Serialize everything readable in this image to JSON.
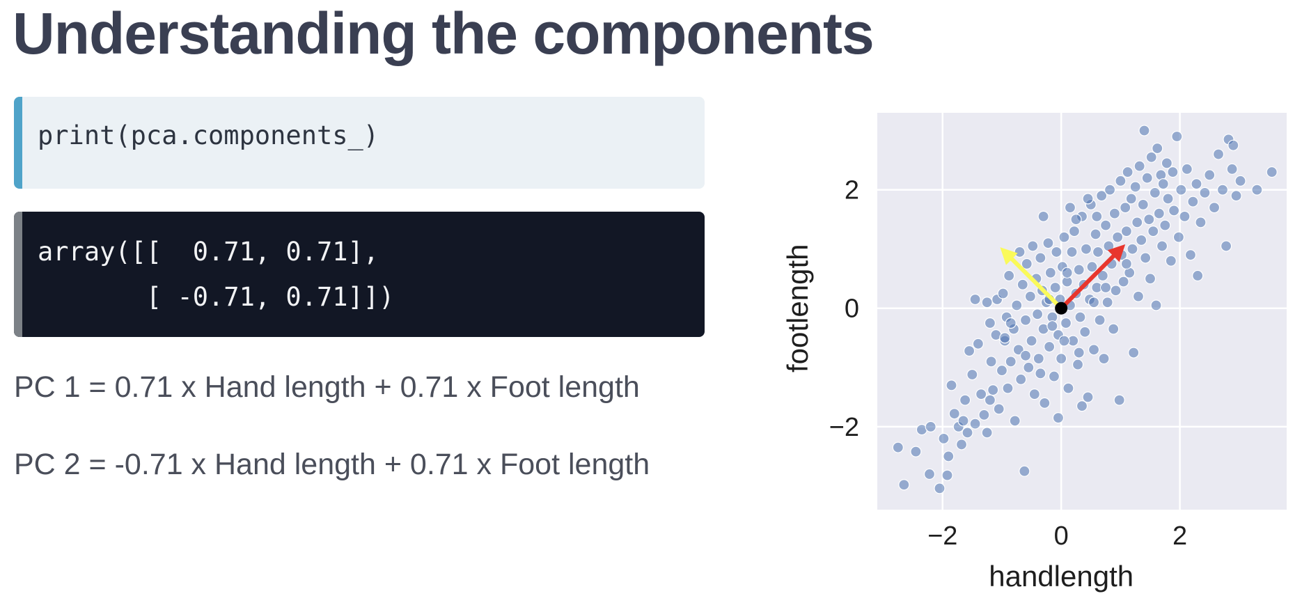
{
  "slide": {
    "title": "Understanding the components"
  },
  "code_input": {
    "text": "print(pca.components_)"
  },
  "code_output": {
    "lines": [
      "array([[  0.71, 0.71],",
      "       [ -0.71, 0.71]])"
    ]
  },
  "equations": [
    "PC 1 = 0.71 x Hand length + 0.71 x Foot length",
    "PC 2 = -0.71 x Hand length + 0.71 x Foot length"
  ],
  "colors": {
    "title": "#3a3f52",
    "code_input_bg": "#ebf1f5",
    "code_input_accent": "#4fa3c9",
    "code_output_bg": "#121725",
    "code_output_accent": "#7c8187",
    "plot_bg": "#eaeaf2",
    "point": "#4c72b0",
    "pc1_arrow": "#e8362d",
    "pc2_arrow": "#fafa5a"
  },
  "chart_data": {
    "type": "scatter",
    "title": "",
    "xlabel": "handlength",
    "ylabel": "footlength",
    "xlim": [
      -3.1,
      3.8
    ],
    "ylim": [
      -3.4,
      3.3
    ],
    "xticks": [
      -2,
      0,
      2
    ],
    "yticks": [
      -2,
      0,
      2
    ],
    "xtick_labels": [
      "−2",
      "0",
      "2"
    ],
    "ytick_labels": [
      "−2",
      "0",
      "2"
    ],
    "grid": true,
    "points": [
      [
        -2.75,
        -2.35
      ],
      [
        -2.65,
        -2.98
      ],
      [
        -2.45,
        -2.42
      ],
      [
        -2.35,
        -2.05
      ],
      [
        -2.22,
        -2.8
      ],
      [
        -2.05,
        -3.04
      ],
      [
        -1.98,
        -2.2
      ],
      [
        -1.92,
        -2.82
      ],
      [
        -1.85,
        -1.3
      ],
      [
        -1.8,
        -1.78
      ],
      [
        -1.73,
        -2.0
      ],
      [
        -1.68,
        -2.3
      ],
      [
        -1.62,
        -1.55
      ],
      [
        -1.58,
        -2.1
      ],
      [
        -1.55,
        -0.72
      ],
      [
        -1.5,
        -1.12
      ],
      [
        -1.45,
        -1.95
      ],
      [
        -1.4,
        -0.6
      ],
      [
        -1.35,
        -1.45
      ],
      [
        -1.3,
        -1.8
      ],
      [
        -1.25,
        -2.1
      ],
      [
        -1.2,
        -0.25
      ],
      [
        -1.18,
        -0.9
      ],
      [
        -1.15,
        -1.38
      ],
      [
        -1.1,
        -0.45
      ],
      [
        -1.08,
        0.15
      ],
      [
        -1.05,
        -1.7
      ],
      [
        -1.0,
        -1.05
      ],
      [
        -0.98,
        0.25
      ],
      [
        -0.95,
        -0.55
      ],
      [
        -0.92,
        -0.15
      ],
      [
        -0.9,
        -1.35
      ],
      [
        -0.88,
        0.55
      ],
      [
        -0.85,
        -0.9
      ],
      [
        -0.8,
        -0.35
      ],
      [
        -0.78,
        -1.9
      ],
      [
        -0.75,
        0.05
      ],
      [
        -0.72,
        -0.7
      ],
      [
        -0.7,
        0.95
      ],
      [
        -0.68,
        -1.2
      ],
      [
        -0.65,
        0.4
      ],
      [
        -0.62,
        -2.75
      ],
      [
        -0.6,
        -0.2
      ],
      [
        -0.58,
        0.75
      ],
      [
        -0.55,
        -1.0
      ],
      [
        -0.52,
        0.2
      ],
      [
        -0.5,
        -0.55
      ],
      [
        -0.48,
        1.05
      ],
      [
        -0.45,
        -1.45
      ],
      [
        -0.42,
        0.5
      ],
      [
        -0.4,
        -0.1
      ],
      [
        -0.38,
        -0.85
      ],
      [
        -0.35,
        0.85
      ],
      [
        -0.32,
        0.3
      ],
      [
        -0.3,
        -0.35
      ],
      [
        -0.28,
        -1.6
      ],
      [
        -0.25,
        0.1
      ],
      [
        -0.22,
        1.1
      ],
      [
        -0.2,
        -0.65
      ],
      [
        -0.18,
        0.6
      ],
      [
        -0.15,
        -0.15
      ],
      [
        -0.12,
        -1.15
      ],
      [
        -0.1,
        0.35
      ],
      [
        -0.08,
        0.95
      ],
      [
        -0.05,
        -0.45
      ],
      [
        -0.02,
        0.15
      ],
      [
        0.0,
        -0.85
      ],
      [
        0.02,
        0.7
      ],
      [
        0.05,
        1.2
      ],
      [
        0.08,
        -0.25
      ],
      [
        0.1,
        0.45
      ],
      [
        0.12,
        -1.35
      ],
      [
        0.15,
        0.05
      ],
      [
        0.18,
        0.95
      ],
      [
        0.2,
        -0.55
      ],
      [
        0.22,
        1.3
      ],
      [
        0.25,
        0.25
      ],
      [
        0.28,
        -0.95
      ],
      [
        0.3,
        0.65
      ],
      [
        0.32,
        -0.15
      ],
      [
        0.35,
        1.55
      ],
      [
        0.38,
        0.4
      ],
      [
        0.4,
        -0.4
      ],
      [
        0.42,
        1.0
      ],
      [
        0.45,
        -1.5
      ],
      [
        0.48,
        0.15
      ],
      [
        0.5,
        1.75
      ],
      [
        0.52,
        0.7
      ],
      [
        0.55,
        -0.7
      ],
      [
        0.58,
        1.25
      ],
      [
        0.6,
        0.35
      ],
      [
        0.62,
        0.95
      ],
      [
        0.65,
        -0.2
      ],
      [
        0.68,
        1.9
      ],
      [
        0.7,
        0.55
      ],
      [
        0.72,
        -0.85
      ],
      [
        0.75,
        1.4
      ],
      [
        0.78,
        0.1
      ],
      [
        0.8,
        1.05
      ],
      [
        0.82,
        2.0
      ],
      [
        0.85,
        0.75
      ],
      [
        0.88,
        -0.35
      ],
      [
        0.9,
        1.6
      ],
      [
        0.92,
        0.3
      ],
      [
        0.95,
        1.2
      ],
      [
        0.98,
        -1.55
      ],
      [
        1.0,
        2.15
      ],
      [
        1.02,
        0.9
      ],
      [
        1.05,
        0.45
      ],
      [
        1.08,
        1.7
      ],
      [
        1.1,
        1.3
      ],
      [
        1.12,
        2.3
      ],
      [
        1.15,
        0.6
      ],
      [
        1.18,
        1.85
      ],
      [
        1.2,
        1.0
      ],
      [
        1.22,
        -0.75
      ],
      [
        1.25,
        2.05
      ],
      [
        1.28,
        1.45
      ],
      [
        1.3,
        0.2
      ],
      [
        1.32,
        2.4
      ],
      [
        1.35,
        1.15
      ],
      [
        1.38,
        1.75
      ],
      [
        1.4,
        3.0
      ],
      [
        1.42,
        0.85
      ],
      [
        1.45,
        2.2
      ],
      [
        1.48,
        1.5
      ],
      [
        1.5,
        0.5
      ],
      [
        1.52,
        2.55
      ],
      [
        1.55,
        1.3
      ],
      [
        1.58,
        1.95
      ],
      [
        1.6,
        0.05
      ],
      [
        1.62,
        2.7
      ],
      [
        1.65,
        1.6
      ],
      [
        1.68,
        2.25
      ],
      [
        1.7,
        1.05
      ],
      [
        1.72,
        2.1
      ],
      [
        1.75,
        1.4
      ],
      [
        1.78,
        2.45
      ],
      [
        1.8,
        1.85
      ],
      [
        1.85,
        0.8
      ],
      [
        1.88,
        2.3
      ],
      [
        1.9,
        1.65
      ],
      [
        1.95,
        2.9
      ],
      [
        1.98,
        1.2
      ],
      [
        2.02,
        2.0
      ],
      [
        2.08,
        1.55
      ],
      [
        2.12,
        2.35
      ],
      [
        2.18,
        0.9
      ],
      [
        2.22,
        1.8
      ],
      [
        2.28,
        2.1
      ],
      [
        2.3,
        0.55
      ],
      [
        2.35,
        1.45
      ],
      [
        2.42,
        1.95
      ],
      [
        2.5,
        2.25
      ],
      [
        2.58,
        1.7
      ],
      [
        2.65,
        2.6
      ],
      [
        2.72,
        2.0
      ],
      [
        2.78,
        1.05
      ],
      [
        2.82,
        2.85
      ],
      [
        2.88,
        2.35
      ],
      [
        2.95,
        1.9
      ],
      [
        3.02,
        2.15
      ],
      [
        3.3,
        2.0
      ],
      [
        3.55,
        2.3
      ],
      [
        2.9,
        2.75
      ],
      [
        0.25,
        1.5
      ],
      [
        0.6,
        1.55
      ],
      [
        0.15,
        1.7
      ],
      [
        -0.3,
        1.55
      ],
      [
        0.45,
        1.85
      ],
      [
        -0.85,
        -0.25
      ],
      [
        -1.25,
        0.1
      ],
      [
        -1.45,
        0.15
      ],
      [
        -0.05,
        -1.85
      ],
      [
        0.35,
        -1.65
      ],
      [
        -0.35,
        -1.1
      ],
      [
        0.05,
        -0.55
      ],
      [
        -0.2,
        0.15
      ],
      [
        0.3,
        -0.75
      ],
      [
        0.55,
        0.1
      ],
      [
        -0.6,
        -0.8
      ],
      [
        -0.95,
        -0.5
      ],
      [
        -1.2,
        -1.55
      ],
      [
        -1.65,
        -1.9
      ],
      [
        -1.9,
        -2.5
      ],
      [
        -2.2,
        -2.0
      ],
      [
        0.75,
        0.35
      ],
      [
        1.1,
        0.75
      ],
      [
        -0.15,
        -0.3
      ],
      [
        0.1,
        0.6
      ]
    ],
    "vectors": [
      {
        "name": "PC1",
        "from": [
          0,
          0
        ],
        "to": [
          1.0,
          1.0
        ],
        "color": "#e8362d"
      },
      {
        "name": "PC2",
        "from": [
          0,
          0
        ],
        "to": [
          -0.95,
          0.95
        ],
        "color": "#fafa5a"
      }
    ],
    "mean_point": [
      0,
      0
    ]
  }
}
